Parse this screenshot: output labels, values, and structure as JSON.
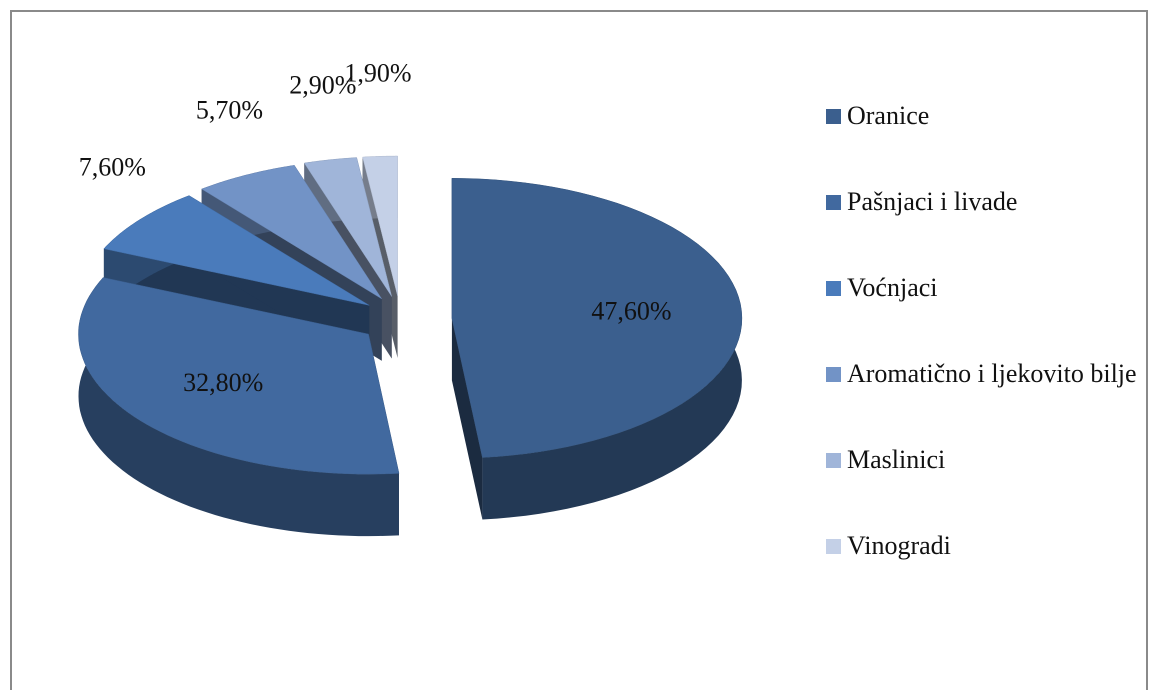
{
  "chart_data": {
    "type": "pie",
    "categories": [
      "Oranice",
      "Pašnjaci i livade",
      "Voćnjaci",
      "Aromatično i ljekovito bilje",
      "Maslinici",
      "Vinogradi"
    ],
    "values": [
      47.6,
      32.8,
      7.6,
      5.7,
      2.9,
      1.9
    ],
    "value_labels": [
      "47,60%",
      "32,80%",
      "7,60%",
      "5,70%",
      "2,90%",
      "1,90%"
    ],
    "colors": [
      "#3b5f8e",
      "#41699f",
      "#4a7bbb",
      "#7293c6",
      "#a0b5d9",
      "#c4d0e7"
    ],
    "legend": "right"
  }
}
